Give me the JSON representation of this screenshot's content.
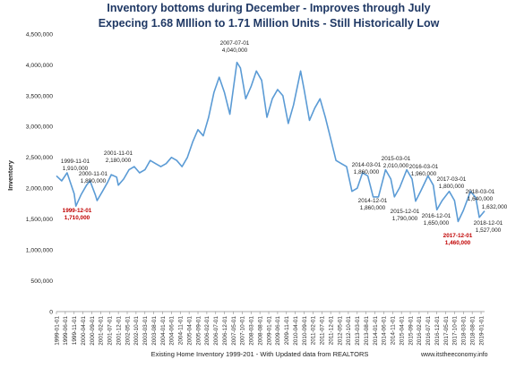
{
  "chart_data": {
    "type": "line",
    "title_lines": [
      "Inventory bottoms during  December - Improves through July",
      "Expecing 1.68 MIllion to 1.71 Million Units - Still Historically Low"
    ],
    "ylabel": "Inventory",
    "xlabel": "Existing Home Inventory 1999-201 - With Updated data from REALTORS",
    "watermark": "www.itstheeconomy.info",
    "ylim": [
      0,
      4500000
    ],
    "yticks": [
      0,
      500000,
      1000000,
      1500000,
      2000000,
      2500000,
      3000000,
      3500000,
      4000000,
      4500000
    ],
    "ytick_labels": [
      "0",
      "500,000",
      "1,000,000",
      "1,500,000",
      "2,000,000",
      "2,500,000",
      "3,000,000",
      "3,500,000",
      "4,000,000",
      "4,500,000"
    ],
    "xlim": [
      "1999-01",
      "2019-03"
    ],
    "xtick_labels": [
      "1999-01-01",
      "1999-06-01",
      "1999-11-01",
      "2000-04-01",
      "2000-09-01",
      "2001-02-01",
      "2001-07-01",
      "2001-12-01",
      "2002-05-01",
      "2002-10-01",
      "2003-03-01",
      "2003-08-01",
      "2004-01-01",
      "2004-06-01",
      "2004-11-01",
      "2005-04-01",
      "2005-09-01",
      "2006-02-01",
      "2006-07-01",
      "2006-12-01",
      "2007-05-01",
      "2007-10-01",
      "2008-03-01",
      "2008-08-01",
      "2009-01-01",
      "2009-06-01",
      "2009-11-01",
      "2010-04-01",
      "2010-09-01",
      "2011-02-01",
      "2011-07-01",
      "2011-12-01",
      "2012-05-01",
      "2012-10-01",
      "2013-03-01",
      "2013-08-01",
      "2014-01-01",
      "2014-06-01",
      "2014-11-01",
      "2015-04-01",
      "2015-09-01",
      "2016-02-01",
      "2016-07-01",
      "2016-12-01",
      "2017-05-01",
      "2017-10-01",
      "2018-03-01",
      "2018-08-01",
      "2019-01-01"
    ],
    "grid": false,
    "legend": "none",
    "series": [
      {
        "color": "#5b9bd5",
        "x": [
          "1999-01",
          "1999-04",
          "1999-07",
          "1999-11",
          "1999-12",
          "2000-03",
          "2000-06",
          "2000-08",
          "2000-11",
          "2000-12",
          "2001-03",
          "2001-06",
          "2001-08",
          "2001-11",
          "2001-12",
          "2002-03",
          "2002-06",
          "2002-09",
          "2002-12",
          "2003-03",
          "2003-06",
          "2003-09",
          "2003-12",
          "2004-03",
          "2004-06",
          "2004-09",
          "2004-12",
          "2005-03",
          "2005-06",
          "2005-09",
          "2005-12",
          "2006-03",
          "2006-06",
          "2006-09",
          "2006-12",
          "2007-03",
          "2007-07",
          "2007-09",
          "2007-12",
          "2008-03",
          "2008-06",
          "2008-09",
          "2008-12",
          "2009-03",
          "2009-06",
          "2009-09",
          "2009-12",
          "2010-03",
          "2010-07",
          "2010-09",
          "2010-12",
          "2011-03",
          "2011-06",
          "2011-09",
          "2011-12",
          "2012-03",
          "2012-06",
          "2012-09",
          "2012-12",
          "2013-03",
          "2013-06",
          "2013-09",
          "2013-12",
          "2014-03",
          "2014-07",
          "2014-10",
          "2014-12",
          "2015-03",
          "2015-07",
          "2015-10",
          "2015-12",
          "2016-03",
          "2016-07",
          "2016-10",
          "2016-12",
          "2017-03",
          "2017-07",
          "2017-10",
          "2017-12",
          "2018-03",
          "2018-07",
          "2018-10",
          "2018-12",
          "2019-03"
        ],
        "y": [
          2200000,
          2120000,
          2250000,
          1910000,
          1710000,
          1900000,
          2050000,
          2120000,
          1890000,
          1800000,
          1950000,
          2100000,
          2220000,
          2180000,
          2050000,
          2150000,
          2300000,
          2350000,
          2250000,
          2300000,
          2450000,
          2400000,
          2350000,
          2400000,
          2500000,
          2450000,
          2350000,
          2500000,
          2750000,
          2950000,
          2850000,
          3150000,
          3550000,
          3800000,
          3550000,
          3200000,
          4040000,
          3950000,
          3450000,
          3650000,
          3900000,
          3750000,
          3150000,
          3450000,
          3600000,
          3500000,
          3050000,
          3350000,
          3900000,
          3600000,
          3100000,
          3300000,
          3450000,
          3150000,
          2800000,
          2450000,
          2400000,
          2350000,
          1950000,
          2000000,
          2250000,
          2200000,
          1860000,
          1860000,
          2300000,
          2150000,
          1860000,
          2010000,
          2300000,
          2150000,
          1790000,
          1960000,
          2200000,
          2050000,
          1650000,
          1800000,
          1950000,
          1800000,
          1460000,
          1640000,
          1950000,
          1850000,
          1527000,
          1632000
        ]
      }
    ],
    "annotations": [
      {
        "label": "1999-11-01",
        "value": "1,910,000",
        "highlight": false
      },
      {
        "label": "2000-11-01",
        "value": "1,890,000",
        "highlight": false
      },
      {
        "label": "1999-12-01",
        "value": "1,710,000",
        "highlight": true
      },
      {
        "label": "2001-11-01",
        "value": "2,180,000",
        "highlight": false
      },
      {
        "label": "2007-07-01",
        "value": "4,040,000",
        "highlight": false
      },
      {
        "label": "2014-03-01",
        "value": "1,860,000",
        "highlight": false
      },
      {
        "label": "2014-12-01",
        "value": "1,860,000",
        "highlight": false
      },
      {
        "label": "2015-03-01",
        "value": "2,010,000",
        "highlight": false
      },
      {
        "label": "2015-12-01",
        "value": "1,790,000",
        "highlight": false
      },
      {
        "label": "2016-03-01",
        "value": "1,960,000",
        "highlight": false
      },
      {
        "label": "2016-12-01",
        "value": "1,650,000",
        "highlight": false
      },
      {
        "label": "2017-03-01",
        "value": "1,800,000",
        "highlight": false
      },
      {
        "label": "2017-12-01",
        "value": "1,460,000",
        "highlight": true
      },
      {
        "label": "2018-03-01",
        "value": "1,640,000",
        "highlight": false
      },
      {
        "label": "2018-12-01",
        "value": "1,527,000",
        "highlight": false
      },
      {
        "label": "",
        "value": "1,632,000",
        "highlight": false
      }
    ]
  }
}
